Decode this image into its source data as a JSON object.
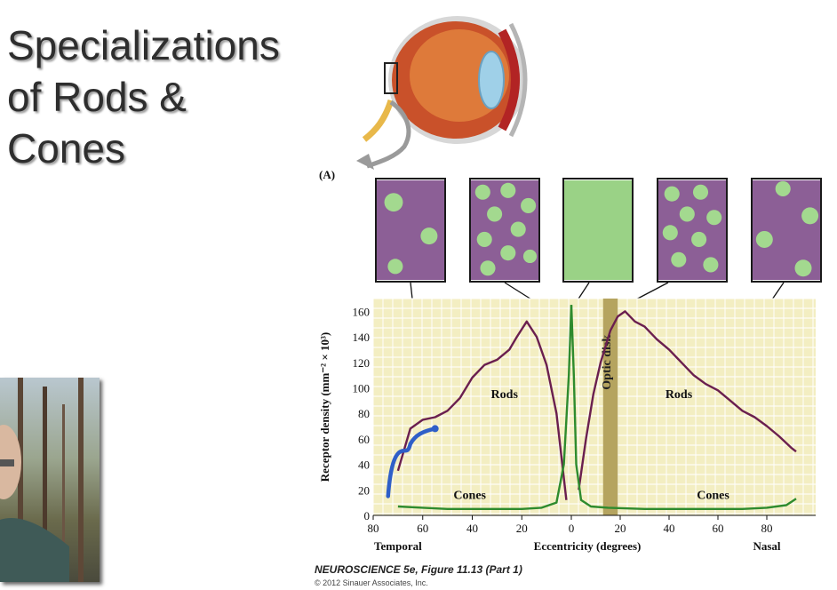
{
  "slide": {
    "title_lines": [
      "Specializations",
      "of Rods &",
      "Cones"
    ]
  },
  "figure": {
    "panel_label": "(A)",
    "caption": "NEUROSCIENCE 5e, Figure 11.13 (Part 1)",
    "copyright": "© 2012 Sinauer Associates, Inc."
  },
  "colors": {
    "rods": "#6a1f4f",
    "cones": "#2e8b2e",
    "chart_bg": "#f3eec2",
    "optic_disk": "#b5a45f",
    "annotation": "#2f5fc8",
    "mosaic_rod": "#8c5f96",
    "mosaic_cone": "#a3d98f"
  },
  "chart_data": {
    "type": "line",
    "xlabel": "Eccentricity (degrees)",
    "ylabel": "Receptor density (mm⁻² × 10³)",
    "xlim": [
      80,
      100
    ],
    "ylim": [
      0,
      170
    ],
    "x_ticks": [
      "80",
      "60",
      "40",
      "20",
      "0",
      "20",
      "40",
      "60",
      "80"
    ],
    "y_ticks": [
      "0",
      "20",
      "40",
      "60",
      "80",
      "100",
      "120",
      "140",
      "160"
    ],
    "x_side_labels": {
      "left": "Temporal",
      "right": "Nasal"
    },
    "band_label": "Optic disk",
    "series": [
      {
        "name": "Rods",
        "side": "temporal",
        "ecc": [
          70,
          65,
          60,
          55,
          50,
          45,
          40,
          35,
          30,
          25,
          22,
          18,
          14,
          10,
          6,
          2
        ],
        "values": [
          35,
          68,
          75,
          77,
          82,
          92,
          108,
          118,
          122,
          130,
          140,
          152,
          140,
          118,
          80,
          12
        ]
      },
      {
        "name": "Rods",
        "side": "nasal",
        "ecc": [
          3,
          6,
          9,
          12,
          16,
          19,
          22,
          26,
          30,
          35,
          40,
          45,
          50,
          55,
          60,
          65,
          70,
          75,
          80,
          85,
          90,
          92
        ],
        "values": [
          20,
          60,
          95,
          120,
          145,
          156,
          160,
          152,
          148,
          138,
          130,
          120,
          110,
          103,
          98,
          90,
          82,
          77,
          70,
          62,
          53,
          50
        ]
      },
      {
        "name": "Cones",
        "side": "temporal",
        "ecc": [
          70,
          60,
          50,
          40,
          30,
          20,
          12,
          6,
          3,
          1,
          0
        ],
        "values": [
          7,
          6,
          5,
          5,
          5,
          5,
          6,
          10,
          40,
          110,
          165
        ]
      },
      {
        "name": "Cones",
        "side": "nasal",
        "ecc": [
          0,
          1,
          2,
          4,
          8,
          15,
          30,
          50,
          70,
          80,
          88,
          92
        ],
        "values": [
          165,
          110,
          40,
          12,
          7,
          6,
          5,
          5,
          5,
          6,
          8,
          13
        ]
      }
    ],
    "series_labels": [
      {
        "text": "Rods",
        "side": "temporal",
        "ecc": 27,
        "value": 92
      },
      {
        "text": "Rods",
        "side": "nasal",
        "ecc": 44,
        "value": 92
      },
      {
        "text": "Cones",
        "side": "temporal",
        "ecc": 41,
        "value": 13
      },
      {
        "text": "Cones",
        "side": "nasal",
        "ecc": 58,
        "value": 13
      }
    ],
    "optic_disk_range": [
      13,
      19
    ]
  }
}
